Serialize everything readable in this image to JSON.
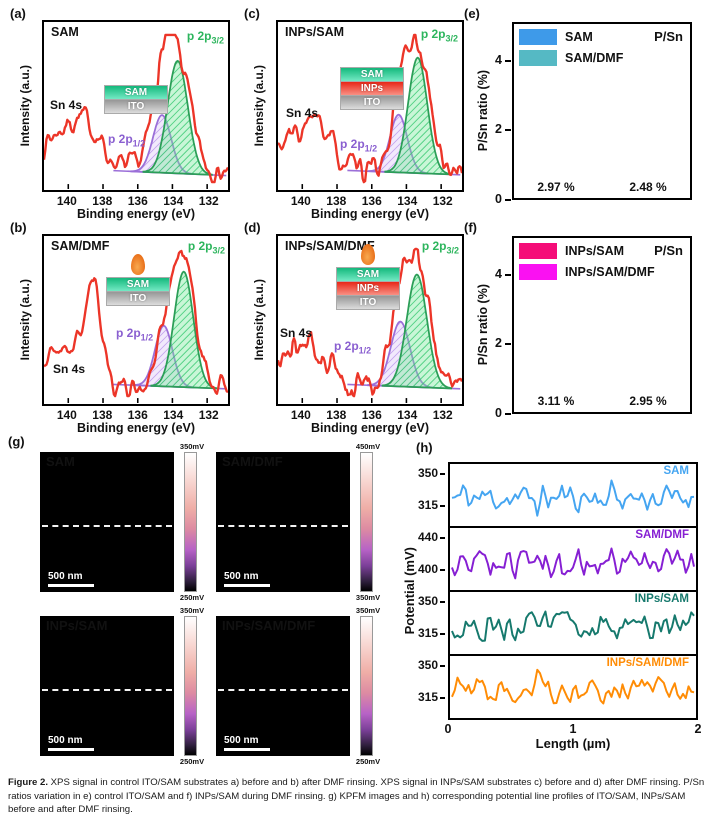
{
  "palette": {
    "red": "#ec3528",
    "green_stroke": "#2b9e57",
    "green_label": "#2db55d",
    "purple_stroke": "#9b6fd8",
    "purple_label": "#8a5fd0"
  },
  "xps_axis": {
    "ylabel": "Intensity (a.u.)",
    "xlabel": "Binding energy (eV)",
    "ticks": [
      "140",
      "138",
      "136",
      "134",
      "132"
    ],
    "tick_values": [
      140,
      138,
      136,
      134,
      132
    ]
  },
  "labels": {
    "sn4s": "Sn 4s",
    "p2p": "p 2p",
    "sub32": "3/2",
    "sub12": "1/2"
  },
  "xps_panels": {
    "a": {
      "label": "(a)",
      "title": "SAM",
      "inset_layers": [
        "SAM",
        "ITO"
      ],
      "droplet": false,
      "seed": 7,
      "noise": 0.03,
      "red": [
        {
          "c": 140.0,
          "s": 1.5,
          "a": 0.3
        },
        {
          "c": 138.9,
          "s": 0.7,
          "a": 0.12
        },
        {
          "c": 133.95,
          "s": 0.85,
          "a": 0.88
        }
      ],
      "rbase": 0.07,
      "baseline": [
        0.1,
        0.045
      ],
      "green": {
        "c": 133.7,
        "s": 0.58,
        "a": 0.78
      },
      "purple": {
        "c": 134.6,
        "s": 0.52,
        "a": 0.4
      }
    },
    "b": {
      "label": "(b)",
      "title": "SAM/DMF",
      "inset_layers": [
        "SAM",
        "ITO"
      ],
      "droplet": true,
      "seed": 21,
      "noise": 0.028,
      "red": [
        {
          "c": 140.3,
          "s": 1.1,
          "a": 0.28
        },
        {
          "c": 138.55,
          "s": 0.5,
          "a": 0.62
        },
        {
          "c": 133.45,
          "s": 0.72,
          "a": 0.9
        }
      ],
      "rbase": 0.06,
      "baseline": [
        0.1,
        0.05
      ],
      "green": {
        "c": 133.35,
        "s": 0.55,
        "a": 0.8
      },
      "purple": {
        "c": 134.5,
        "s": 0.5,
        "a": 0.42
      }
    },
    "c": {
      "label": "(c)",
      "title": "INPs/SAM",
      "inset_layers": [
        "SAM",
        "INPs",
        "ITO"
      ],
      "droplet": false,
      "seed": 33,
      "noise": 0.032,
      "red": [
        {
          "c": 140.2,
          "s": 1.4,
          "a": 0.24
        },
        {
          "c": 139.0,
          "s": 0.75,
          "a": 0.16
        },
        {
          "c": 133.5,
          "s": 0.78,
          "a": 0.9
        }
      ],
      "rbase": 0.065,
      "baseline": [
        0.1,
        0.05
      ],
      "green": {
        "c": 133.35,
        "s": 0.55,
        "a": 0.8
      },
      "purple": {
        "c": 134.45,
        "s": 0.5,
        "a": 0.4
      }
    },
    "d": {
      "label": "(d)",
      "title": "INPs/SAM/DMF",
      "inset_layers": [
        "SAM",
        "INPs",
        "ITO"
      ],
      "droplet": true,
      "seed": 44,
      "noise": 0.045,
      "red": [
        {
          "c": 140.5,
          "s": 1.3,
          "a": 0.22
        },
        {
          "c": 139.2,
          "s": 0.8,
          "a": 0.14
        },
        {
          "c": 133.6,
          "s": 0.85,
          "a": 0.88
        }
      ],
      "rbase": 0.06,
      "baseline": [
        0.1,
        0.05
      ],
      "green": {
        "c": 133.4,
        "s": 0.58,
        "a": 0.78
      },
      "purple": {
        "c": 134.35,
        "s": 0.55,
        "a": 0.45
      }
    }
  },
  "panel_e": {
    "label": "(e)",
    "corner": "P/Sn",
    "chart_data": {
      "type": "bar",
      "categories": [
        "SAM",
        "SAM/DMF"
      ],
      "values": [
        2.97,
        2.48
      ],
      "value_labels": [
        "2.97 %",
        "2.48 %"
      ],
      "colors": [
        "#3e9ae9",
        "#55b9c4"
      ],
      "ylabel": "P/Sn ratio (%)",
      "yticks": [
        0,
        2,
        4
      ],
      "ylim": [
        0,
        5
      ],
      "legend_position": "top-left"
    }
  },
  "panel_f": {
    "label": "(f)",
    "corner": "P/Sn",
    "chart_data": {
      "type": "bar",
      "categories": [
        "INPs/SAM",
        "INPs/SAM/DMF"
      ],
      "values": [
        3.11,
        2.95
      ],
      "value_labels": [
        "3.11 %",
        "2.95 %"
      ],
      "colors": [
        "#f50d78",
        "#fa11f2"
      ],
      "ylabel": "P/Sn ratio (%)",
      "yticks": [
        0,
        2,
        4
      ],
      "ylim": [
        0,
        5
      ],
      "legend_position": "top-left"
    }
  },
  "panel_g": {
    "label": "(g)",
    "images": [
      {
        "name": "SAM",
        "scalebar": "500 nm",
        "cb_top": "350mV",
        "cb_bottom": "250mV",
        "seed": 3,
        "blotch": 0.72
      },
      {
        "name": "SAM/DMF",
        "scalebar": "500 nm",
        "cb_top": "450mV",
        "cb_bottom": "350mV",
        "seed": 8,
        "blotch": 1.0
      },
      {
        "name": "INPs/SAM",
        "scalebar": "500 nm",
        "cb_top": "350mV",
        "cb_bottom": "250mV",
        "seed": 15,
        "blotch": 0.26
      },
      {
        "name": "INPs/SAM/DMF",
        "scalebar": "500 nm",
        "cb_top": "350mV",
        "cb_bottom": "250mV",
        "seed": 27,
        "blotch": 0.18
      }
    ]
  },
  "panel_h": {
    "label": "(h)",
    "chart_data": {
      "type": "line",
      "ylabel": "Potential (mV)",
      "xlabel": "Length (µm)",
      "xticks": [
        "0",
        "1",
        "2"
      ],
      "x_range_um": [
        0,
        2
      ],
      "series": [
        {
          "name": "SAM",
          "color": "#45a5f1",
          "yticks": [
            "350",
            "315"
          ],
          "mean_mV": 318,
          "seed": 11
        },
        {
          "name": "SAM/DMF",
          "color": "#861fd3",
          "yticks": [
            "440",
            "400"
          ],
          "mean_mV": 420,
          "seed": 52
        },
        {
          "name": "INPs/SAM",
          "color": "#16796d",
          "yticks": [
            "350",
            "315"
          ],
          "mean_mV": 322,
          "seed": 63
        },
        {
          "name": "INPs/SAM/DMF",
          "color": "#ff8c05",
          "yticks": [
            "350",
            "315"
          ],
          "mean_mV": 325,
          "seed": 74
        }
      ]
    }
  },
  "caption": {
    "prefix": "Figure 2.",
    "text": " XPS signal in control ITO/SAM substrates a) before and b) after DMF rinsing. XPS signal in INPs/SAM substrates c) before and d) after DMF rinsing. P/Sn ratios variation in e) control ITO/SAM and f) INPs/SAM during DMF rinsing. g) KPFM images and h) corresponding potential line profiles of ITO/SAM, INPs/SAM before and after DMF rinsing."
  }
}
